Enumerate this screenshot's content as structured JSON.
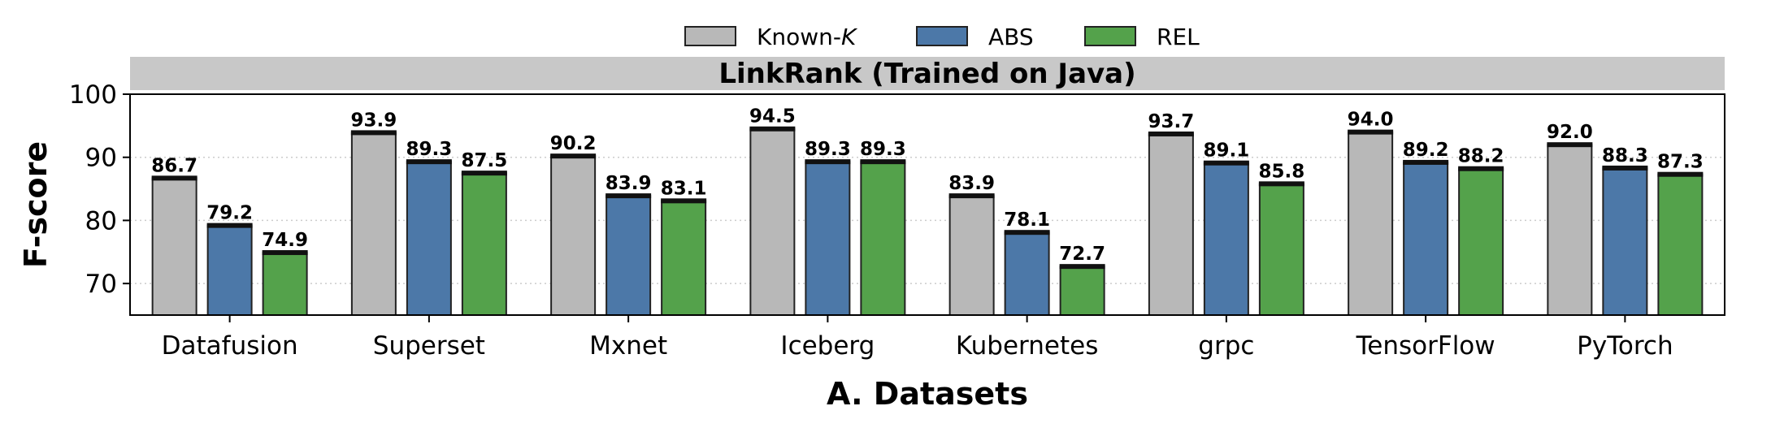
{
  "chart_data": {
    "type": "bar",
    "title": "LinkRank (Trained on Java)",
    "xlabel": "A. Datasets",
    "ylabel": "F-score",
    "ylim": [
      65,
      100
    ],
    "yticks": [
      70,
      80,
      90,
      100
    ],
    "grid": "horizontal dotted",
    "legend": {
      "placement": "top-center"
    },
    "categories": [
      "Datafusion",
      "Superset",
      "Mxnet",
      "Iceberg",
      "Kubernetes",
      "grpc",
      "TensorFlow",
      "PyTorch"
    ],
    "series": [
      {
        "name_prefix": "Known-",
        "name_italic": "K",
        "color": "#b8b8b8",
        "values": [
          86.7,
          93.9,
          90.2,
          94.5,
          83.9,
          93.7,
          94.0,
          92.0
        ]
      },
      {
        "name": "ABS",
        "color": "#4c78a8",
        "values": [
          79.2,
          89.3,
          83.9,
          89.3,
          78.1,
          89.1,
          89.2,
          88.3
        ]
      },
      {
        "name": "REL",
        "color": "#54a24b",
        "values": [
          74.9,
          87.5,
          83.1,
          89.3,
          72.7,
          85.8,
          88.2,
          87.3
        ]
      }
    ]
  },
  "colors": {
    "title_band": "#c8c8c8",
    "bar_edge": "#222222",
    "grid": "#cccccc"
  }
}
